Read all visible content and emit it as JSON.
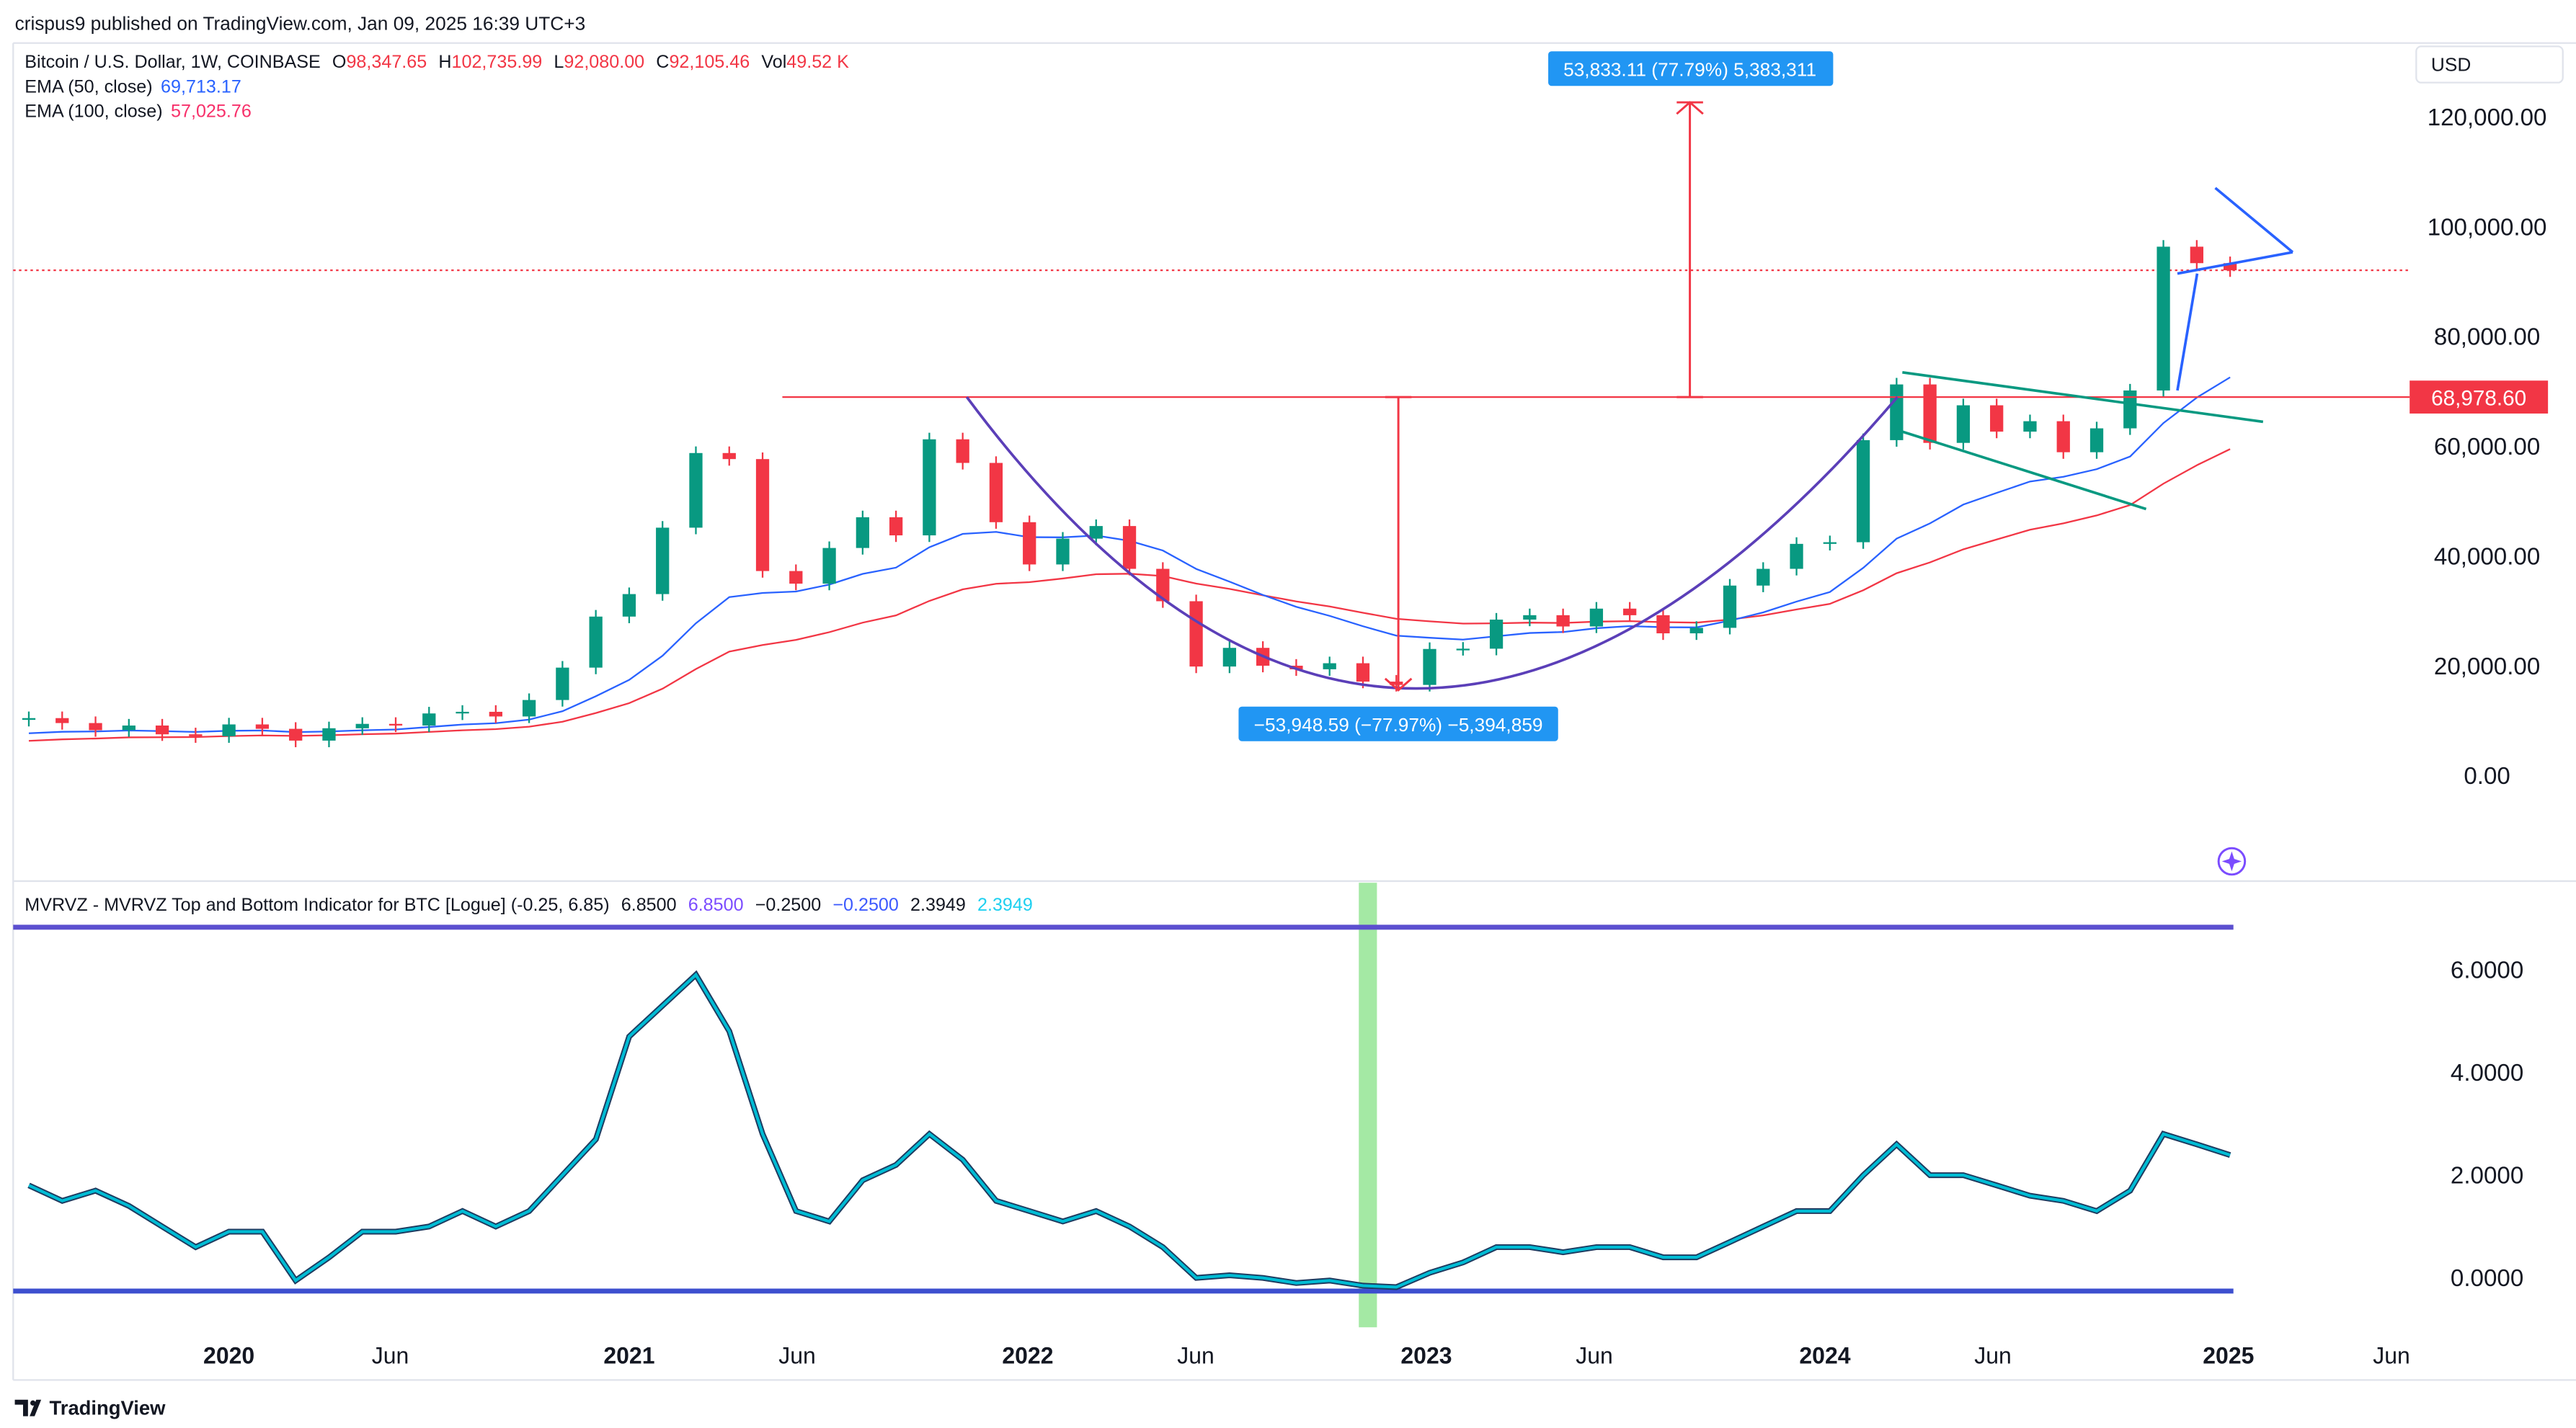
{
  "publish_line": "crispus9 published on TradingView.com, Jan 09, 2025 16:39 UTC+3",
  "legend": {
    "symbol": "Bitcoin / U.S. Dollar, 1W, COINBASE",
    "o_label": "O",
    "o": "98,347.65",
    "h_label": "H",
    "h": "102,735.99",
    "l_label": "L",
    "l": "92,080.00",
    "c_label": "C",
    "c": "92,105.46",
    "vol_label": "Vol",
    "vol": "49.52 K",
    "ema50_label": "EMA (50, close)",
    "ema50": "69,713.17",
    "ema100_label": "EMA (100, close)",
    "ema100": "57,025.76"
  },
  "indicator_legend": {
    "title": "MVRVZ - MVRVZ Top and Bottom Indicator for BTC [Logue] (-0.25, 6.85)",
    "v1": "6.8500",
    "v1c": "6.8500",
    "v2": "−0.2500",
    "v2c": "−0.2500",
    "v3": "2.3949",
    "v3c": "2.3949"
  },
  "currency": "USD",
  "price_axis": [
    "120,000.00",
    "100,000.00",
    "80,000.00",
    "60,000.00",
    "40,000.00",
    "20,000.00",
    "0.00"
  ],
  "indicator_axis": [
    "6.0000",
    "4.0000",
    "2.0000",
    "0.0000"
  ],
  "time_axis": [
    "2020",
    "Jun",
    "2021",
    "Jun",
    "2022",
    "Jun",
    "2023",
    "Jun",
    "2024",
    "Jun",
    "2025",
    "Jun"
  ],
  "last_price_label": "68,978.60",
  "measure_up": "53,833.11 (77.79%) 5,383,311",
  "measure_down": "−53,948.59 (−77.97%) −5,394,859",
  "brand": "TradingView",
  "colors": {
    "up": "#089981",
    "down": "#f23645",
    "ema50": "#2962ff",
    "ema100": "#f23645",
    "mvrv": "#00bcd4",
    "band": "#5b4fcf",
    "cup": "#5b3fb8",
    "flag": "#089981",
    "pennant": "#2962ff",
    "highlight": "#7ee07e"
  },
  "chart_data": [
    {
      "type": "candlestick",
      "interval_shown": "1W",
      "start_month": "2019-07",
      "closes_monthly_approx": [
        10500,
        9600,
        8300,
        9150,
        7550,
        7200,
        9350,
        8550,
        6400,
        8650,
        9450,
        9150,
        11350,
        11650,
        10800,
        13800,
        19700,
        29000,
        33100,
        45200,
        58800,
        57700,
        37300,
        35000,
        41500,
        47100,
        43800,
        61300,
        57000,
        46200,
        38500,
        43200,
        45500,
        37700,
        31800,
        19900,
        23300,
        20050,
        19400,
        20500,
        17150,
        16550,
        23100,
        23150,
        28450,
        29250,
        27200,
        30450,
        29250,
        25950,
        26950,
        34650,
        37700,
        42250,
        42550,
        61150,
        71300,
        60650,
        67500,
        62700,
        64600,
        58950,
        63300,
        70200,
        96400,
        93400,
        92105
      ],
      "ylim": [
        0,
        120000
      ],
      "ylabel_ticks": [
        0,
        20000,
        40000,
        60000,
        80000,
        100000,
        120000
      ],
      "horizontal_level": 68978.6,
      "current_price_line": 92105.46
    },
    {
      "type": "line",
      "name": "MVRVZ",
      "start_month": "2019-07",
      "values_monthly_approx": [
        1.8,
        1.5,
        1.7,
        1.4,
        1.0,
        0.6,
        0.9,
        0.9,
        -0.05,
        0.4,
        0.9,
        0.9,
        1.0,
        1.3,
        1.0,
        1.3,
        2.0,
        2.7,
        4.7,
        5.3,
        5.9,
        4.8,
        2.8,
        1.3,
        1.1,
        1.9,
        2.2,
        2.8,
        2.3,
        1.5,
        1.3,
        1.1,
        1.3,
        1.0,
        0.6,
        0.0,
        0.05,
        0.0,
        -0.1,
        -0.05,
        -0.15,
        -0.18,
        0.1,
        0.3,
        0.6,
        0.6,
        0.5,
        0.6,
        0.6,
        0.4,
        0.4,
        0.7,
        1.0,
        1.3,
        1.3,
        2.0,
        2.6,
        2.0,
        2.0,
        1.8,
        1.6,
        1.5,
        1.3,
        1.7,
        2.8,
        2.6,
        2.39
      ],
      "bands": [
        6.85,
        -0.25
      ],
      "ylim": [
        -0.25,
        6.85
      ],
      "highlight_month": "2022-11"
    }
  ]
}
